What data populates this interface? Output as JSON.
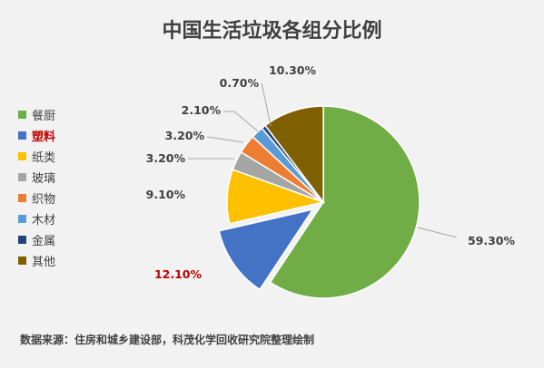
{
  "chart_data": {
    "type": "pie",
    "title": "中国生活垃圾各组分比例",
    "categories": [
      "餐厨",
      "塑料",
      "纸类",
      "玻璃",
      "织物",
      "木材",
      "金属",
      "其他"
    ],
    "values": [
      59.3,
      12.1,
      9.1,
      3.2,
      3.2,
      2.1,
      0.7,
      10.3
    ],
    "value_labels": [
      "59.30%",
      "12.10%",
      "9.10%",
      "3.20%",
      "3.20%",
      "2.10%",
      "0.70%",
      "10.30%"
    ],
    "colors": [
      "#70ad47",
      "#4472c4",
      "#ffc000",
      "#a5a5a5",
      "#ed7d31",
      "#5b9bd5",
      "#264478",
      "#7f6000"
    ],
    "highlight": {
      "category": "塑料",
      "exploded": true,
      "label_color": "#c00000"
    },
    "legend_position": "left"
  },
  "source_note": "数据来源：住房和城乡建设部，科茂化学回收研究院整理绘制"
}
